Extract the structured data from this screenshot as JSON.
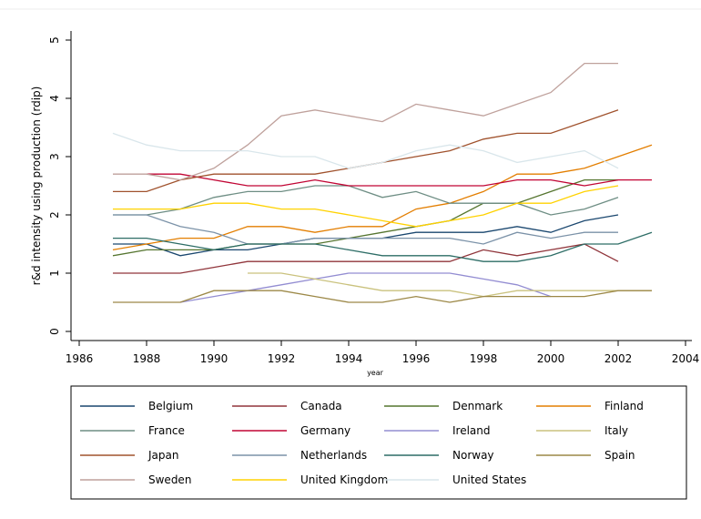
{
  "chart_data": {
    "type": "line",
    "ylabel": "r&d intensity using production (rdip)",
    "xlabel": "year",
    "x": [
      1987,
      1988,
      1989,
      1990,
      1991,
      1992,
      1993,
      1994,
      1995,
      1996,
      1997,
      1998,
      1999,
      2000,
      2001,
      2002,
      2003
    ],
    "xlim": [
      1986,
      2004
    ],
    "xticks": [
      1986,
      1988,
      1990,
      1992,
      1994,
      1996,
      1998,
      2000,
      2002,
      2004
    ],
    "ylim": [
      0,
      5
    ],
    "yticks": [
      0,
      1,
      2,
      3,
      4,
      5
    ],
    "legend": "bottom",
    "series": [
      {
        "name": "Belgium",
        "color": "#1a476f",
        "values": [
          1.5,
          1.5,
          1.3,
          1.4,
          1.4,
          1.5,
          1.6,
          1.6,
          1.6,
          1.7,
          1.7,
          1.7,
          1.8,
          1.7,
          1.9,
          2.0,
          null
        ]
      },
      {
        "name": "Canada",
        "color": "#90353b",
        "values": [
          1.0,
          1.0,
          1.0,
          1.1,
          1.2,
          1.2,
          1.2,
          1.2,
          1.2,
          1.2,
          1.2,
          1.4,
          1.3,
          1.4,
          1.5,
          1.2,
          null
        ]
      },
      {
        "name": "Denmark",
        "color": "#55752f",
        "values": [
          1.3,
          1.4,
          1.4,
          1.4,
          1.5,
          1.5,
          1.5,
          1.6,
          1.7,
          1.8,
          1.9,
          2.2,
          2.2,
          2.4,
          2.6,
          2.6,
          null
        ]
      },
      {
        "name": "Finland",
        "color": "#e37e00",
        "values": [
          1.4,
          1.5,
          1.6,
          1.6,
          1.8,
          1.8,
          1.7,
          1.8,
          1.8,
          2.1,
          2.2,
          2.4,
          2.7,
          2.7,
          2.8,
          3.0,
          3.2
        ]
      },
      {
        "name": "France",
        "color": "#6e8e84",
        "values": [
          2.0,
          2.0,
          2.1,
          2.3,
          2.4,
          2.4,
          2.5,
          2.5,
          2.3,
          2.4,
          2.2,
          2.2,
          2.2,
          2.0,
          2.1,
          2.3,
          null
        ]
      },
      {
        "name": "Germany",
        "color": "#c10534",
        "values": [
          null,
          2.7,
          2.7,
          2.6,
          2.5,
          2.5,
          2.6,
          2.5,
          2.5,
          2.5,
          2.5,
          2.5,
          2.6,
          2.6,
          2.5,
          2.6,
          2.6
        ]
      },
      {
        "name": "Ireland",
        "color": "#938dd2",
        "values": [
          null,
          null,
          0.5,
          0.6,
          0.7,
          0.8,
          0.9,
          1.0,
          1.0,
          1.0,
          1.0,
          0.9,
          0.8,
          0.6,
          null,
          null,
          null
        ]
      },
      {
        "name": "Italy",
        "color": "#cac27e",
        "values": [
          null,
          null,
          null,
          null,
          1.0,
          1.0,
          0.9,
          0.8,
          0.7,
          0.7,
          0.7,
          0.6,
          0.7,
          0.7,
          0.7,
          0.7,
          0.7
        ]
      },
      {
        "name": "Japan",
        "color": "#a0522d",
        "values": [
          2.4,
          2.4,
          2.6,
          2.7,
          2.7,
          2.7,
          2.7,
          2.8,
          2.9,
          3.0,
          3.1,
          3.3,
          3.4,
          3.4,
          3.6,
          3.8,
          null
        ]
      },
      {
        "name": "Netherlands",
        "color": "#7b92a8",
        "values": [
          2.0,
          2.0,
          1.8,
          1.7,
          1.5,
          1.5,
          1.6,
          1.6,
          1.6,
          1.6,
          1.6,
          1.5,
          1.7,
          1.6,
          1.7,
          1.7,
          null
        ]
      },
      {
        "name": "Norway",
        "color": "#2d6d66",
        "values": [
          1.6,
          1.6,
          1.5,
          1.4,
          1.5,
          1.5,
          1.5,
          1.4,
          1.3,
          1.3,
          1.3,
          1.2,
          1.2,
          1.3,
          1.5,
          1.5,
          1.7
        ]
      },
      {
        "name": "Spain",
        "color": "#9c8847",
        "values": [
          0.5,
          0.5,
          0.5,
          0.7,
          0.7,
          0.7,
          0.6,
          0.5,
          0.5,
          0.6,
          0.5,
          0.6,
          0.6,
          0.6,
          0.6,
          0.7,
          0.7
        ]
      },
      {
        "name": "Sweden",
        "color": "#bfa19c",
        "values": [
          2.7,
          2.7,
          2.6,
          2.8,
          3.2,
          3.7,
          3.8,
          3.7,
          3.6,
          3.9,
          3.8,
          3.7,
          3.9,
          4.1,
          4.6,
          4.6,
          null
        ]
      },
      {
        "name": "United Kingdom",
        "color": "#ffd200",
        "values": [
          2.1,
          2.1,
          2.1,
          2.2,
          2.2,
          2.1,
          2.1,
          2.0,
          1.9,
          1.8,
          1.9,
          2.0,
          2.2,
          2.2,
          2.4,
          2.5,
          null
        ]
      },
      {
        "name": "United States",
        "color": "#d9e6eb",
        "values": [
          3.4,
          3.2,
          3.1,
          3.1,
          3.1,
          3.0,
          3.0,
          2.8,
          2.9,
          3.1,
          3.2,
          3.1,
          2.9,
          3.0,
          3.1,
          2.8,
          null
        ]
      }
    ]
  }
}
